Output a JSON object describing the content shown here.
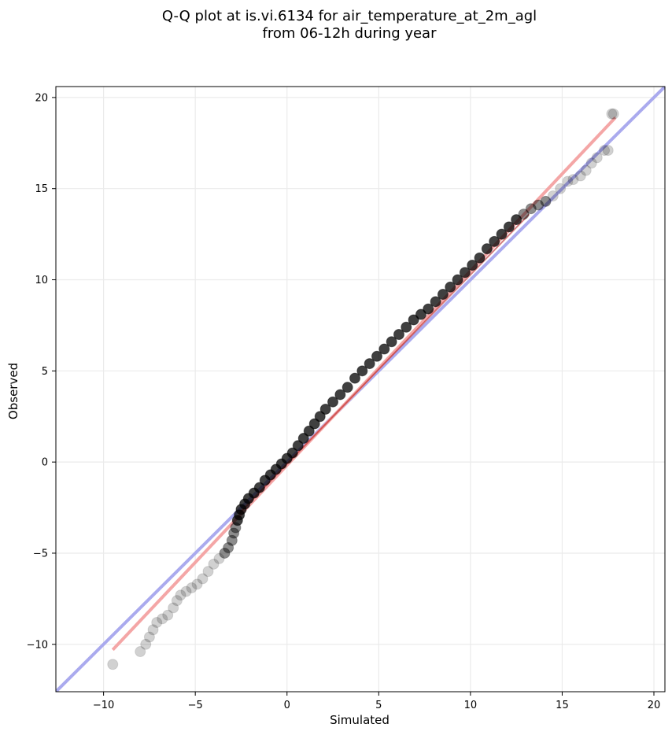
{
  "chart_data": {
    "type": "scatter",
    "title": "Q-Q plot at is.vi.6134 for air_temperature_at_2m_agl",
    "subtitle": "from 06-12h during year",
    "xlabel": "Simulated",
    "ylabel": "Observed",
    "xlim": [
      -12.6,
      20.6
    ],
    "ylim": [
      -12.6,
      20.6
    ],
    "xticks": [
      -10,
      -5,
      0,
      5,
      10,
      15,
      20
    ],
    "yticks": [
      -10,
      -5,
      0,
      5,
      10,
      15,
      20
    ],
    "xtick_labels": [
      "−10",
      "−5",
      "0",
      "5",
      "10",
      "15",
      "20"
    ],
    "ytick_labels": [
      "−10",
      "−5",
      "0",
      "5",
      "10",
      "15",
      "20"
    ],
    "grid": true,
    "reference_line": {
      "name": "1:1 line",
      "color": "#aaaaee",
      "x": [
        -12.6,
        20.6
      ],
      "y": [
        -12.6,
        20.6
      ]
    },
    "fit_line": {
      "name": "fit",
      "color": "#f4a6a6",
      "x": [
        -9.5,
        17.9
      ],
      "y": [
        -10.3,
        18.9
      ]
    },
    "series": [
      {
        "name": "quantiles",
        "color": "#000000",
        "x": [
          -9.5,
          -8.0,
          -7.7,
          -7.5,
          -7.3,
          -7.1,
          -6.8,
          -6.5,
          -6.2,
          -6.0,
          -5.8,
          -5.5,
          -5.2,
          -4.9,
          -4.6,
          -4.3,
          -4.0,
          -3.7,
          -3.4,
          -3.2,
          -3.0,
          -2.9,
          -2.8,
          -2.7,
          -2.6,
          -2.5,
          -2.3,
          -2.1,
          -1.8,
          -1.5,
          -1.2,
          -0.9,
          -0.6,
          -0.3,
          0.0,
          0.3,
          0.6,
          0.9,
          1.2,
          1.5,
          1.8,
          2.1,
          2.5,
          2.9,
          3.3,
          3.7,
          4.1,
          4.5,
          4.9,
          5.3,
          5.7,
          6.1,
          6.5,
          6.9,
          7.3,
          7.7,
          8.1,
          8.5,
          8.9,
          9.3,
          9.7,
          10.1,
          10.5,
          10.9,
          11.3,
          11.7,
          12.1,
          12.5,
          12.9,
          13.3,
          13.7,
          14.1,
          14.5,
          14.9,
          15.3,
          15.6,
          16.0,
          16.3,
          16.6,
          16.9,
          17.3,
          17.5,
          17.7,
          17.8
        ],
        "y": [
          -11.1,
          -10.4,
          -10.0,
          -9.6,
          -9.2,
          -8.8,
          -8.6,
          -8.4,
          -8.0,
          -7.6,
          -7.3,
          -7.1,
          -6.9,
          -6.7,
          -6.4,
          -6.0,
          -5.6,
          -5.3,
          -5.0,
          -4.7,
          -4.3,
          -3.9,
          -3.6,
          -3.2,
          -2.9,
          -2.6,
          -2.3,
          -2.0,
          -1.7,
          -1.4,
          -1.0,
          -0.7,
          -0.4,
          -0.1,
          0.2,
          0.5,
          0.9,
          1.3,
          1.7,
          2.1,
          2.5,
          2.9,
          3.3,
          3.7,
          4.1,
          4.6,
          5.0,
          5.4,
          5.8,
          6.2,
          6.6,
          7.0,
          7.4,
          7.8,
          8.1,
          8.4,
          8.8,
          9.2,
          9.6,
          10.0,
          10.4,
          10.8,
          11.2,
          11.7,
          12.1,
          12.5,
          12.9,
          13.3,
          13.6,
          13.9,
          14.1,
          14.3,
          14.6,
          15.0,
          15.4,
          15.5,
          15.7,
          16.0,
          16.4,
          16.7,
          17.1,
          17.1,
          19.1,
          19.1
        ]
      }
    ]
  }
}
